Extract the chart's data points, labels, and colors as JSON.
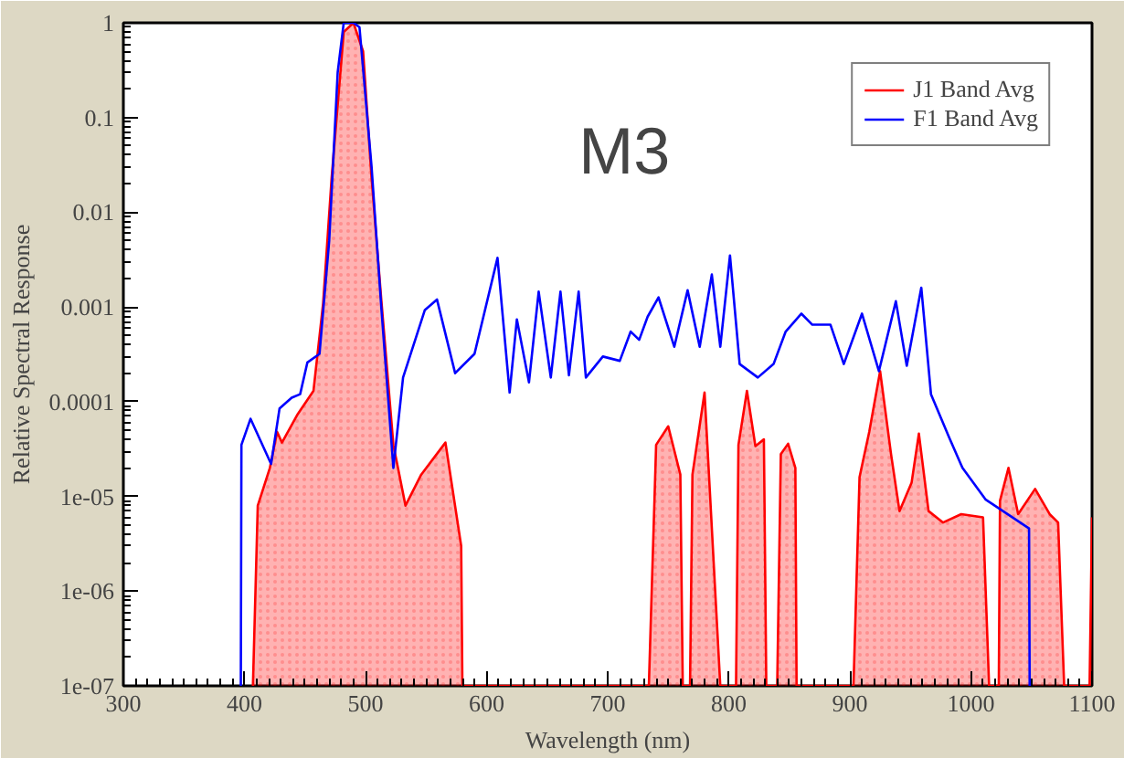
{
  "chart_data": {
    "type": "line",
    "xlabel": "Wavelength (nm)",
    "ylabel": "Relative Spectral Response",
    "annotations": [
      "M3"
    ],
    "log": "y",
    "grid": false,
    "legend": "top right",
    "xlim": [
      300,
      1100
    ],
    "xticks": [
      300,
      400,
      500,
      600,
      700,
      800,
      900,
      1000,
      1100
    ],
    "ylim": [
      1e-07,
      1
    ],
    "yticks": [
      {
        "value": 1e-07,
        "label": "1e-07"
      },
      {
        "value": 1e-06,
        "label": "1e-06"
      },
      {
        "value": 1e-05,
        "label": "1e-05"
      },
      0.0001,
      0.001,
      0.01,
      0.1,
      1
    ],
    "series": [
      {
        "name": "J1 Band Avg",
        "type": "area",
        "color": "#ff0000",
        "x": [
          407,
          411,
          421,
          427,
          431,
          444,
          457,
          465,
          472,
          482,
          490,
          498,
          505,
          513,
          523,
          533,
          546,
          566,
          579,
          580,
          734,
          740,
          750,
          760,
          762,
          768,
          770,
          780,
          793,
          806,
          808,
          815,
          822,
          829,
          831,
          840,
          843,
          849,
          855,
          856,
          903,
          908,
          916,
          925,
          934,
          941,
          951,
          957,
          965,
          977,
          992,
          1010,
          1015,
          1023,
          1024,
          1031,
          1039,
          1053,
          1065,
          1072,
          1077,
          1098,
          1100
        ],
        "values": [
          1e-07,
          8e-06,
          2e-05,
          4.8e-05,
          3.7e-05,
          7.4e-05,
          0.00013,
          0.0011,
          0.023,
          0.8,
          1,
          0.5,
          0.023,
          0.0012,
          3.5e-05,
          8e-06,
          1.7e-05,
          3.7e-05,
          3e-06,
          1e-07,
          1e-07,
          3.5e-05,
          5.5e-05,
          1.7e-05,
          1e-07,
          1e-07,
          1.7e-05,
          0.000125,
          1e-07,
          1e-07,
          3.5e-05,
          0.00013,
          3.4e-05,
          4e-05,
          1e-07,
          1e-07,
          2.8e-05,
          3.6e-05,
          2e-05,
          1e-07,
          1e-07,
          1.6e-05,
          4.8e-05,
          0.00021,
          2.8e-05,
          7e-06,
          1.4e-05,
          4.6e-05,
          7e-06,
          5.3e-06,
          6.5e-06,
          6e-06,
          1e-07,
          1e-07,
          9e-06,
          2e-05,
          6.5e-06,
          1.2e-05,
          6.5e-06,
          5.3e-06,
          1e-07,
          1e-07,
          6e-06
        ]
      },
      {
        "name": "F1 Band Avg",
        "color": "#0000ff",
        "x": [
          397,
          397.5,
          405,
          422,
          429,
          439,
          446,
          452,
          462,
          470,
          477,
          482,
          490,
          495,
          505,
          513,
          523,
          531,
          549,
          559,
          574,
          590,
          609,
          619,
          625,
          635,
          643,
          653,
          661,
          668,
          676,
          682,
          696,
          710,
          719,
          726,
          733,
          742,
          755,
          766,
          776,
          786,
          793,
          801,
          809,
          824,
          837,
          847,
          860,
          869,
          884,
          895,
          910,
          924,
          938,
          947,
          959,
          967,
          982,
          993,
          1012,
          1048,
          1048.5
        ],
        "values": [
          1e-07,
          3.5e-05,
          6.6e-05,
          2.2e-05,
          8.5e-05,
          0.00011,
          0.00012,
          0.00026,
          0.00032,
          0.005,
          0.3,
          1,
          1,
          0.9,
          0.03,
          0.001,
          2e-05,
          0.00018,
          0.00093,
          0.0012,
          0.0002,
          0.00032,
          0.0033,
          0.000125,
          0.00074,
          0.00016,
          0.00145,
          0.00018,
          0.00145,
          0.00019,
          0.00145,
          0.00018,
          0.0003,
          0.00027,
          0.00055,
          0.00045,
          0.00079,
          0.00126,
          0.00038,
          0.0015,
          0.00038,
          0.0022,
          0.00038,
          0.0035,
          0.00025,
          0.00018,
          0.00025,
          0.00055,
          0.00085,
          0.00065,
          0.00065,
          0.00025,
          0.00085,
          0.00021,
          0.00115,
          0.00024,
          0.0016,
          0.00012,
          4.2e-05,
          2e-05,
          9.3e-06,
          4.6e-06,
          1e-07
        ]
      }
    ]
  }
}
